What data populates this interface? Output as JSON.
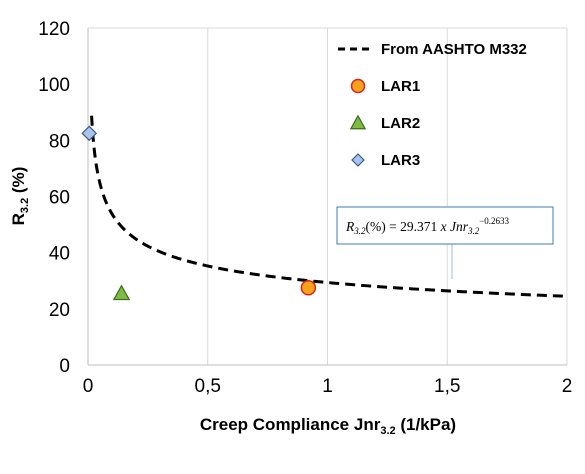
{
  "chart_data": {
    "type": "scatter",
    "xlabel": "Creep Compliance Jnr",
    "xlabel_sub": "3.2",
    "xlabel_unit": " (1/kPa)",
    "ylabel": "R",
    "ylabel_sub": "3.2",
    "ylabel_unit": " (%)",
    "xlim": [
      0,
      2
    ],
    "ylim": [
      0,
      120
    ],
    "x_ticks": [
      "0",
      "0,5",
      "1",
      "1,5",
      "2"
    ],
    "y_ticks": [
      "0",
      "20",
      "40",
      "60",
      "80",
      "100",
      "120"
    ],
    "grid": "vertical",
    "legend_position": "top-right",
    "series": [
      {
        "name": "From AASHTO M332",
        "kind": "curve",
        "style": "dashed",
        "color": "#000000",
        "equation": {
          "coefficient": 29.371,
          "exponent": -0.2633
        },
        "x_range": [
          0.015,
          2
        ]
      },
      {
        "name": "LAR1",
        "kind": "point",
        "marker": "circle",
        "color": "#f7a21b",
        "stroke": "#d6241e",
        "x": 0.92,
        "y": 27.5
      },
      {
        "name": "LAR2",
        "kind": "point",
        "marker": "triangle",
        "color": "#7dbb42",
        "stroke": "#3d6b1f",
        "x": 0.14,
        "y": 25.5
      },
      {
        "name": "LAR3",
        "kind": "point",
        "marker": "diamond",
        "color": "#a9c4eb",
        "stroke": "#3a5c8f",
        "x": 0.005,
        "y": 82.5
      }
    ],
    "annotation": {
      "lhs": "R",
      "lhs_sub": "3.2",
      "lhs_unit": "(%) = 29.371 ",
      "times": "x",
      "var": " Jnr",
      "var_sub": "3.2",
      "exponent_text": "−0.2633",
      "border_color": "#3f7fb0",
      "leader_color": "#9dbde0"
    }
  }
}
